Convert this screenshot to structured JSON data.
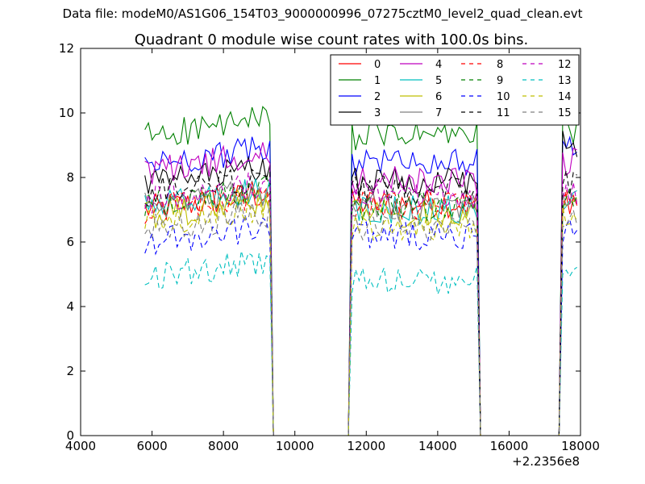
{
  "figure": {
    "suptitle": "Data file: modeM0/AS1G06_154T03_9000000996_07275cztM0_level2_quad_clean.evt"
  },
  "chart_data": {
    "type": "line",
    "title": "Quadrant 0 module wise count rates with 100.0s bins.",
    "xlabel": "",
    "ylabel": "",
    "x_offset_label": "+2.2356e8",
    "xlim": [
      4000,
      18000
    ],
    "ylim": [
      0,
      12
    ],
    "xticks": [
      4000,
      6000,
      8000,
      10000,
      12000,
      14000,
      16000,
      18000
    ],
    "yticks": [
      0,
      2,
      4,
      6,
      8,
      10,
      12
    ],
    "xtick_labels": [
      "4000",
      "6000",
      "8000",
      "10000",
      "12000",
      "14000",
      "16000",
      "18000"
    ],
    "ytick_labels": [
      "0",
      "2",
      "4",
      "6",
      "8",
      "10",
      "12"
    ],
    "grid": false,
    "legend_position": "top-right",
    "legend_columns": 4,
    "segments": [
      [
        5800,
        9300
      ],
      [
        11600,
        15100
      ],
      [
        17500,
        17900
      ]
    ],
    "series": [
      {
        "name": "0",
        "color": "#ff0000",
        "dash": "solid",
        "levels": [
          7.0,
          7.2,
          7.3
        ]
      },
      {
        "name": "1",
        "color": "#008000",
        "dash": "solid",
        "levels": [
          9.3,
          9.3,
          9.5
        ]
      },
      {
        "name": "2",
        "color": "#0000ff",
        "dash": "solid",
        "levels": [
          8.4,
          8.5,
          8.8
        ]
      },
      {
        "name": "3",
        "color": "#000000",
        "dash": "solid",
        "levels": [
          7.8,
          7.9,
          9.0
        ]
      },
      {
        "name": "4",
        "color": "#bf00bf",
        "dash": "solid",
        "levels": [
          8.2,
          7.9,
          8.5
        ]
      },
      {
        "name": "5",
        "color": "#00bfbf",
        "dash": "solid",
        "levels": [
          7.1,
          7.0,
          7.3
        ]
      },
      {
        "name": "6",
        "color": "#bfbf00",
        "dash": "solid",
        "levels": [
          6.8,
          6.9,
          7.0
        ]
      },
      {
        "name": "7",
        "color": "#808080",
        "dash": "solid",
        "levels": [
          7.1,
          7.1,
          7.2
        ]
      },
      {
        "name": "8",
        "color": "#ff0000",
        "dash": "dashed",
        "levels": [
          7.0,
          7.1,
          7.2
        ]
      },
      {
        "name": "9",
        "color": "#008000",
        "dash": "dashed",
        "levels": [
          7.2,
          7.1,
          7.3
        ]
      },
      {
        "name": "10",
        "color": "#0000ff",
        "dash": "dashed",
        "levels": [
          6.0,
          6.2,
          6.4
        ]
      },
      {
        "name": "11",
        "color": "#000000",
        "dash": "dashed",
        "levels": [
          7.5,
          7.6,
          7.8
        ]
      },
      {
        "name": "12",
        "color": "#bf00bf",
        "dash": "dashed",
        "levels": [
          7.3,
          7.4,
          7.6
        ]
      },
      {
        "name": "13",
        "color": "#00bfbf",
        "dash": "dashed",
        "levels": [
          4.9,
          4.8,
          5.0
        ]
      },
      {
        "name": "14",
        "color": "#bfbf00",
        "dash": "dashed",
        "levels": [
          6.6,
          6.5,
          6.8
        ]
      },
      {
        "name": "15",
        "color": "#808080",
        "dash": "dashed",
        "levels": [
          6.4,
          6.5,
          6.6
        ]
      }
    ]
  }
}
